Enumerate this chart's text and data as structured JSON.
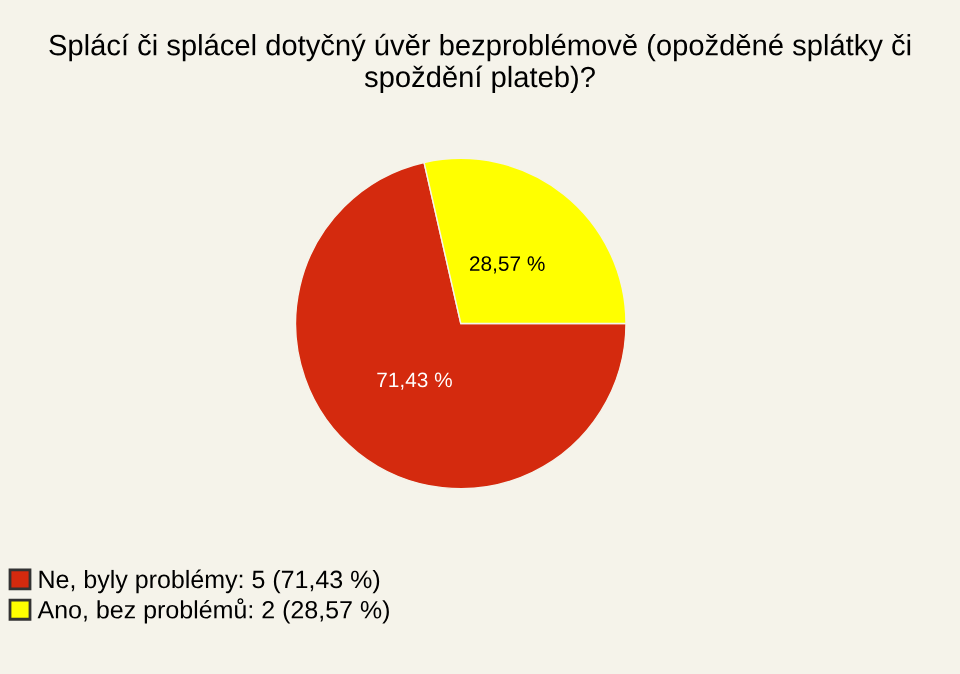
{
  "chart_data": {
    "type": "pie",
    "title": "Splácí či splácel dotyčný úvěr bezproblémově (opožděné splátky či spoždění plateb)?",
    "categories": [
      "Ne, byly problémy: 5 (71,43 %)",
      "Ano, bez problémů: 2 (28,57 %)"
    ],
    "values": [
      71.43,
      28.57
    ],
    "colors": [
      "#d42a0e",
      "#ffff00"
    ],
    "value_labels": [
      "71,43 %",
      "28,57 %"
    ],
    "legend": "bottom left"
  }
}
